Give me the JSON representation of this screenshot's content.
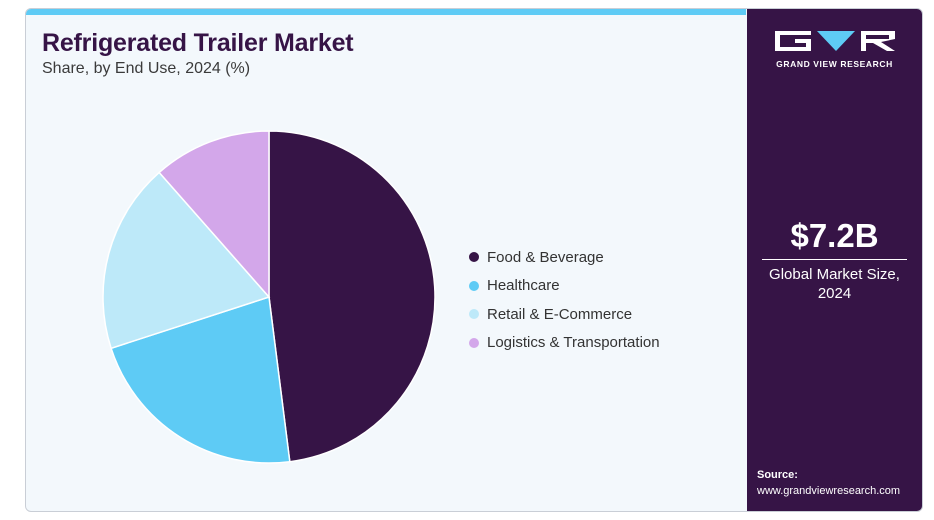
{
  "header": {
    "title": "Refrigerated Trailer Market",
    "subtitle": "Share, by End Use, 2024 (%)"
  },
  "colors": {
    "accent_bar": "#5ecbf5",
    "panel": "#361446",
    "background": "#f3f8fc"
  },
  "chart_data": {
    "type": "pie",
    "title": "Refrigerated Trailer Market",
    "subtitle": "Share, by End Use, 2024 (%)",
    "legend_position": "right",
    "start_angle": "12 o'clock",
    "direction": "clockwise",
    "series": [
      {
        "name": "Food & Beverage",
        "value": 48,
        "color": "#361446"
      },
      {
        "name": "Healthcare",
        "value": 22,
        "color": "#5ecbf5"
      },
      {
        "name": "Retail & E-Commerce",
        "value": 18.5,
        "color": "#bde9f9"
      },
      {
        "name": "Logistics & Transportation",
        "value": 11.5,
        "color": "#d3a7ea"
      }
    ]
  },
  "sidebar": {
    "logo_text": "GRAND VIEW RESEARCH",
    "market_size": "$7.2B",
    "market_label_line1": "Global Market Size,",
    "market_label_line2": "2024",
    "source_label": "Source:",
    "source_url": "www.grandviewresearch.com"
  }
}
